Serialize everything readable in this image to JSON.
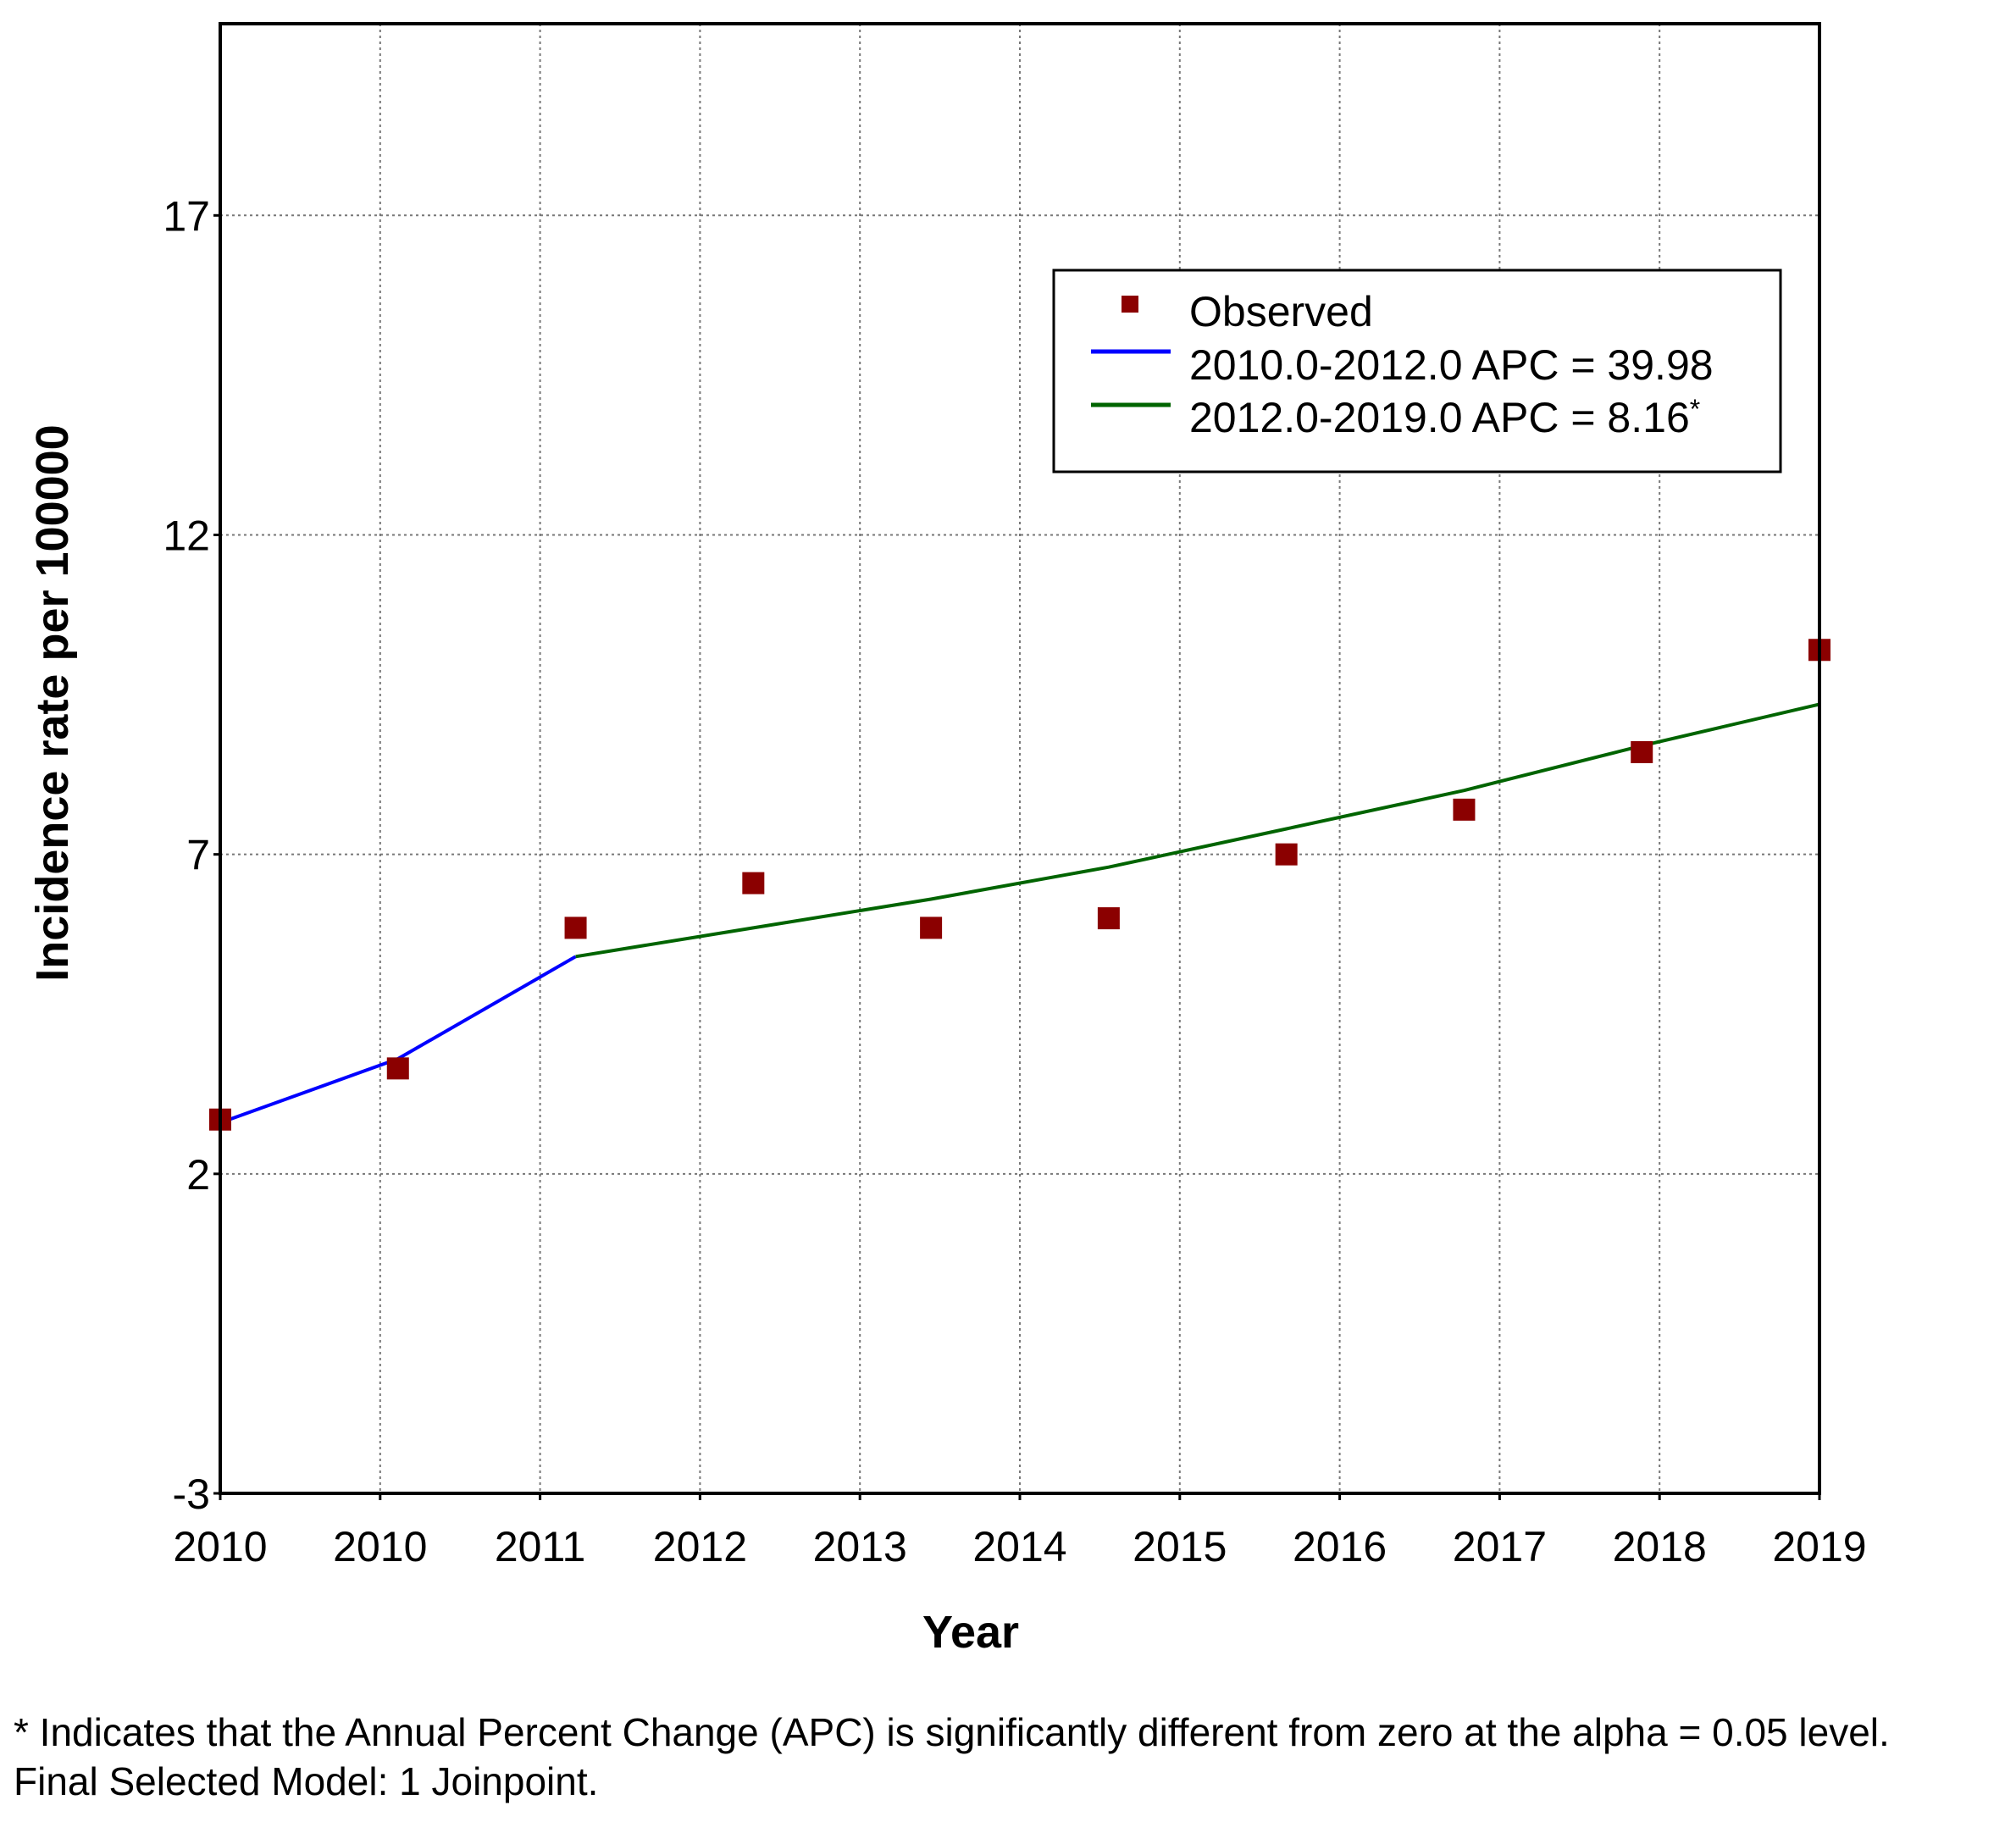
{
  "chart_data": {
    "type": "line",
    "xlabel": "Year",
    "ylabel": "Incidence rate per 100000",
    "x_tick_labels": [
      "2010",
      "2010",
      "2011",
      "2012",
      "2013",
      "2014",
      "2015",
      "2016",
      "2017",
      "2018",
      "2019"
    ],
    "x_range": [
      2010.0,
      2019.0
    ],
    "ylim": [
      -3,
      20
    ],
    "y_ticks": [
      -3,
      2,
      7,
      12,
      17
    ],
    "grid": true,
    "legend_position": "top-right",
    "series": [
      {
        "name": "Observed",
        "kind": "scatter",
        "color": "#8b0000",
        "x": [
          2010.0,
          2011.0,
          2012.0,
          2013.0,
          2014.0,
          2015.0,
          2016.0,
          2017.0,
          2018.0,
          2019.0
        ],
        "y": [
          2.85,
          3.65,
          5.85,
          6.55,
          5.85,
          6.0,
          7.0,
          7.7,
          8.6,
          10.2
        ]
      },
      {
        "name": "2010.0-2012.0 APC  = 39.98",
        "kind": "line",
        "color": "#0000ff",
        "x": [
          2010.0,
          2011.0,
          2012.0
        ],
        "y": [
          2.8,
          3.8,
          5.4
        ]
      },
      {
        "name": "2012.0-2019.0 APC  =  8.16",
        "name_suffix": "*",
        "kind": "line",
        "color": "#006400",
        "x": [
          2012.0,
          2013.0,
          2014.0,
          2015.0,
          2016.0,
          2017.0,
          2018.0,
          2019.0
        ],
        "y": [
          5.4,
          5.85,
          6.3,
          6.8,
          7.4,
          8.0,
          8.7,
          9.35
        ]
      }
    ]
  },
  "footnotes": {
    "line1": "* Indicates that the Annual Percent Change (APC) is significantly different from zero at the alpha = 0.05 level.",
    "line2": "Final Selected Model: 1 Joinpoint."
  }
}
